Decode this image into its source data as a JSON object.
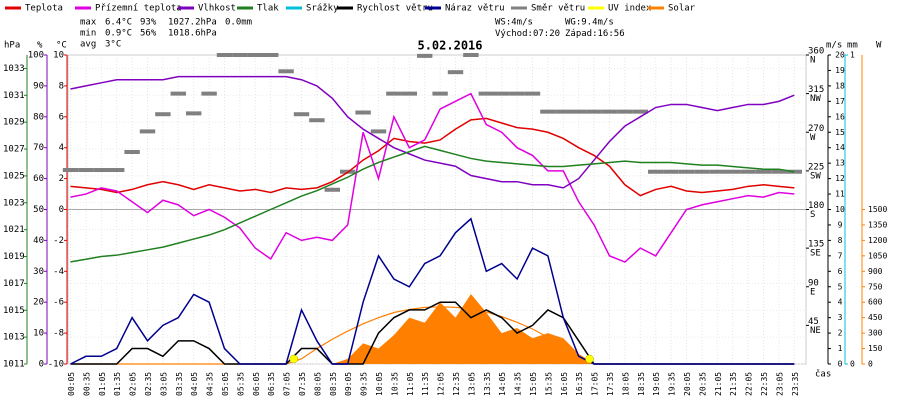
{
  "chart_data": {
    "type": "line",
    "title": "5.02.2016",
    "x_label": "čas",
    "categories": [
      "00:05",
      "00:35",
      "01:05",
      "01:35",
      "02:05",
      "02:35",
      "03:05",
      "03:35",
      "04:05",
      "04:35",
      "05:05",
      "05:35",
      "06:05",
      "06:35",
      "07:05",
      "07:35",
      "08:05",
      "08:35",
      "09:05",
      "09:35",
      "10:05",
      "10:35",
      "11:05",
      "11:35",
      "12:05",
      "12:35",
      "13:05",
      "13:35",
      "14:05",
      "14:35",
      "15:05",
      "15:35",
      "16:05",
      "16:35",
      "17:05",
      "17:35",
      "18:05",
      "18:35",
      "19:05",
      "19:35",
      "20:05",
      "20:35",
      "21:05",
      "21:35",
      "22:05",
      "22:35",
      "23:05",
      "23:35"
    ],
    "series": [
      {
        "name": "Teplota",
        "color": "#e00000",
        "axis": "temp",
        "mark": "line",
        "values": [
          1.5,
          1.4,
          1.3,
          1.1,
          1.3,
          1.6,
          1.8,
          1.6,
          1.3,
          1.6,
          1.4,
          1.2,
          1.3,
          1.1,
          1.4,
          1.3,
          1.4,
          1.8,
          2.4,
          3.2,
          3.8,
          4.6,
          4.4,
          4.3,
          4.5,
          5.2,
          5.8,
          5.9,
          5.6,
          5.3,
          5.2,
          5.0,
          4.6,
          4.0,
          3.5,
          2.8,
          1.6,
          0.9,
          1.3,
          1.5,
          1.2,
          1.1,
          1.2,
          1.3,
          1.5,
          1.6,
          1.5,
          1.4
        ]
      },
      {
        "name": "Přízemní teplota",
        "color": "#e000e0",
        "axis": "temp",
        "mark": "line",
        "values": [
          0.8,
          1.0,
          1.4,
          1.2,
          0.5,
          -0.2,
          0.6,
          0.3,
          -0.4,
          0.0,
          -0.5,
          -1.2,
          -2.5,
          -3.2,
          -1.5,
          -2.0,
          -1.8,
          -2.0,
          -1.0,
          5.0,
          2.0,
          6.0,
          4.0,
          4.5,
          6.5,
          7.0,
          7.5,
          5.5,
          5.0,
          4.0,
          3.5,
          2.5,
          2.5,
          0.5,
          -1.0,
          -3.0,
          -3.4,
          -2.5,
          -3.0,
          -1.5,
          0.0,
          0.3,
          0.5,
          0.7,
          0.9,
          0.8,
          1.1,
          1.0
        ]
      },
      {
        "name": "Vlhkost",
        "color": "#8000c0",
        "axis": "hum",
        "mark": "line",
        "values": [
          89,
          90,
          91,
          92,
          92,
          92,
          92,
          93,
          93,
          93,
          93,
          93,
          93,
          93,
          93,
          92,
          90,
          86,
          80,
          76,
          73,
          70,
          68,
          66,
          65,
          64,
          61,
          60,
          59,
          59,
          58,
          58,
          57,
          60,
          66,
          72,
          77,
          80,
          83,
          84,
          84,
          83,
          82,
          83,
          84,
          84,
          85,
          87
        ]
      },
      {
        "name": "Tlak",
        "color": "#208020",
        "axis": "press",
        "mark": "line",
        "values": [
          1018.6,
          1018.8,
          1019.0,
          1019.1,
          1019.3,
          1019.5,
          1019.7,
          1020.0,
          1020.3,
          1020.6,
          1021.0,
          1021.5,
          1022.0,
          1022.5,
          1023.0,
          1023.5,
          1023.9,
          1024.4,
          1024.9,
          1025.5,
          1026.0,
          1026.4,
          1026.8,
          1027.2,
          1026.9,
          1026.6,
          1026.3,
          1026.1,
          1026.0,
          1025.9,
          1025.8,
          1025.7,
          1025.7,
          1025.8,
          1025.9,
          1026.0,
          1026.1,
          1026.0,
          1026.0,
          1026.0,
          1025.9,
          1025.8,
          1025.8,
          1025.7,
          1025.6,
          1025.5,
          1025.5,
          1025.3
        ]
      },
      {
        "name": "Srážky",
        "color": "#00c0e0",
        "axis": "rain",
        "mark": "none"
      },
      {
        "name": "Rychlost větru",
        "color": "#000000",
        "axis": "wind",
        "mark": "line",
        "values": [
          0,
          0,
          0,
          0,
          1,
          1,
          0.5,
          1.5,
          1.5,
          1,
          0,
          0,
          0,
          0,
          0,
          1,
          1,
          0,
          0,
          0,
          2,
          3,
          3.5,
          3.5,
          4,
          4,
          3,
          3.5,
          3,
          2,
          2.5,
          3.5,
          3,
          1.5,
          0,
          0,
          0,
          0,
          0,
          0,
          0,
          0,
          0,
          0,
          0,
          0,
          0,
          0
        ]
      },
      {
        "name": "Náraz větru",
        "color": "#000090",
        "axis": "wind",
        "mark": "line",
        "values": [
          0,
          0.5,
          0.5,
          1,
          3,
          1.5,
          2.5,
          3,
          4.5,
          4,
          1,
          0,
          0,
          0,
          0,
          3.5,
          1.5,
          0,
          0,
          4,
          7,
          5.5,
          5,
          6.5,
          7,
          8.5,
          9.4,
          6,
          6.5,
          5.5,
          7.5,
          7,
          3,
          0.5,
          0,
          0,
          0,
          0,
          0,
          0,
          0,
          0,
          0,
          0,
          0,
          0,
          0,
          0
        ]
      },
      {
        "name": "Směr větru",
        "color": "#808080",
        "axis": "dir",
        "mark": "segments",
        "values": [
          226,
          226,
          226,
          226,
          247,
          271,
          291,
          315,
          292,
          315,
          360,
          360,
          360,
          360,
          341,
          291,
          284,
          203,
          224,
          293,
          271,
          315,
          315,
          359,
          315,
          340,
          360,
          315,
          315,
          315,
          315,
          294,
          294,
          294,
          294,
          294,
          294,
          294,
          224,
          224,
          224,
          224,
          224,
          224,
          224,
          224,
          224,
          224
        ]
      },
      {
        "name": "UV index",
        "color": "#ffff00",
        "axis": "solar",
        "mark": "none"
      },
      {
        "name": "Solar",
        "color": "#ff8000",
        "axis": "solar",
        "mark": "area",
        "values": [
          0,
          0,
          0,
          0,
          0,
          0,
          0,
          0,
          0,
          0,
          0,
          0,
          0,
          0,
          0,
          0,
          0,
          0,
          50,
          200,
          150,
          280,
          450,
          400,
          600,
          450,
          680,
          500,
          300,
          350,
          250,
          300,
          250,
          100,
          0,
          0,
          0,
          0,
          0,
          0,
          0,
          0,
          0,
          0,
          0,
          0,
          0,
          0
        ],
        "curve": [
          0,
          0,
          0,
          0,
          0,
          0,
          0,
          0,
          0,
          0,
          0,
          0,
          0,
          0,
          0,
          50,
          150,
          240,
          320,
          390,
          450,
          500,
          530,
          550,
          555,
          550,
          535,
          505,
          460,
          405,
          340,
          260,
          170,
          70,
          0,
          0,
          0,
          0,
          0,
          0,
          0,
          0,
          0,
          0,
          0,
          0,
          0,
          0
        ]
      }
    ],
    "axes": {
      "press": {
        "unit": "hPa",
        "color": "#208020",
        "lim": [
          1011,
          1034
        ],
        "ticks": [
          1011,
          1013,
          1015,
          1017,
          1019,
          1021,
          1023,
          1025,
          1027,
          1029,
          1031,
          1033
        ]
      },
      "hum": {
        "unit": "%",
        "color": "#8000c0",
        "lim": [
          0,
          100
        ],
        "ticks": [
          0,
          10,
          20,
          30,
          40,
          50,
          60,
          70,
          80,
          90,
          100
        ]
      },
      "temp": {
        "unit": "°C",
        "color": "#e00000",
        "lim": [
          -10,
          10
        ],
        "ticks": [
          -10,
          -8,
          -6,
          -4,
          -2,
          0,
          2,
          4,
          6,
          8,
          10
        ]
      },
      "dir": {
        "color": "#000000",
        "lim": [
          0,
          360
        ],
        "ticks": [
          {
            "value": 45,
            "label": "NE"
          },
          {
            "value": 90,
            "label": "E"
          },
          {
            "value": 135,
            "label": "SE"
          },
          {
            "value": 180,
            "label": "S"
          },
          {
            "value": 225,
            "label": "SW"
          },
          {
            "value": 270,
            "label": "W"
          },
          {
            "value": 315,
            "label": "NW"
          },
          {
            "value": 360,
            "label": "N"
          }
        ]
      },
      "wind": {
        "unit": "m/s",
        "color": "#000000",
        "lim": [
          0,
          20
        ],
        "ticks": [
          0,
          1,
          2,
          3,
          4,
          5,
          6,
          7,
          8,
          9,
          10,
          11,
          12,
          13,
          14,
          15,
          16,
          17,
          18,
          19,
          20
        ]
      },
      "rain": {
        "unit": "mm",
        "color": "#00c0e0",
        "lim": [
          0,
          1
        ],
        "ticks": [
          0,
          1
        ]
      },
      "solar": {
        "unit": "W",
        "color": "#ff8000",
        "lim": [
          0,
          3000
        ],
        "ticks": [
          0,
          150,
          300,
          450,
          600,
          750,
          900,
          1050,
          1200,
          1350,
          1500
        ]
      }
    },
    "stats": [
      {
        "label": "max",
        "items": [
          {
            "text": "6.4°C",
            "color": "#e00000"
          },
          {
            "text": "93%",
            "color": "#8000c0"
          },
          {
            "text": "1027.2hPa",
            "color": "#e00000"
          },
          {
            "text": "0.0mm",
            "color": "#00c0e0"
          }
        ]
      },
      {
        "label": "min",
        "items": [
          {
            "text": "0.9°C",
            "color": "#000090"
          },
          {
            "text": "56%",
            "color": "#000090"
          },
          {
            "text": "1018.6hPa",
            "color": "#000090"
          }
        ]
      },
      {
        "label": "avg",
        "items": [
          {
            "text": "3°C",
            "color": "#000000"
          }
        ]
      }
    ],
    "wind_info": {
      "ws": "WS:4m/s",
      "wg": "WG:9.4m/s"
    },
    "sun": {
      "rise_label": "Východ:",
      "rise": "07:20",
      "set_label": "Západ:",
      "set": "16:56"
    }
  }
}
